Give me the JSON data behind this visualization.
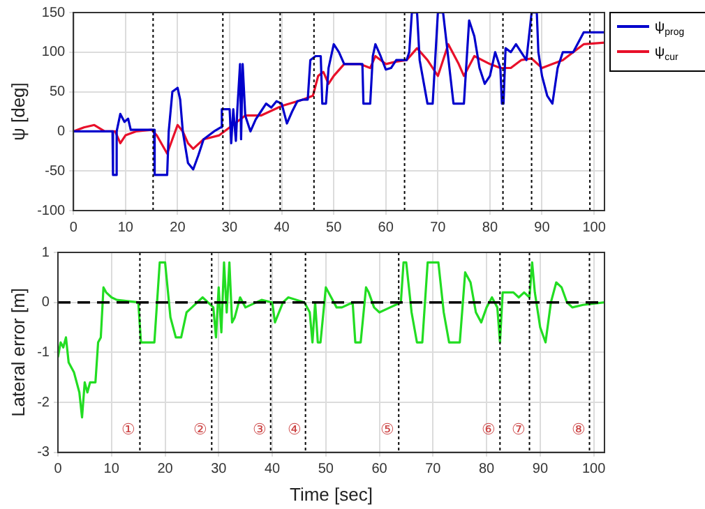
{
  "chart_data": [
    {
      "type": "line",
      "ylabel": "ψ [deg]",
      "xlim": [
        0,
        102
      ],
      "xticks": [
        0,
        10,
        20,
        30,
        40,
        50,
        60,
        70,
        80,
        90,
        100
      ],
      "ylim": [
        -100,
        150
      ],
      "yticks": [
        -100,
        -50,
        0,
        50,
        100,
        150
      ],
      "grid": true,
      "legend": "top right",
      "marker": "none",
      "line_style": "solid",
      "series": [
        {
          "name": "ψ$_{prog}$",
          "color": "#0000cc",
          "x": [
            0,
            7.5,
            7.6,
            8.2,
            8.3,
            9,
            9.8,
            10.5,
            11,
            15.5,
            15.6,
            18,
            18.3,
            19,
            20,
            20.5,
            21,
            22,
            23,
            24,
            25,
            27,
            28.3,
            28.5,
            30,
            30.3,
            30.7,
            31.2,
            31.5,
            32,
            32.2,
            32.5,
            33,
            34,
            35,
            36,
            37,
            38,
            39,
            40,
            41,
            42,
            43,
            44,
            45,
            45.5,
            46.5,
            47.5,
            47.8,
            48.5,
            49,
            50,
            51,
            52,
            54,
            55.5,
            55.7,
            57,
            57.5,
            58,
            59,
            60,
            61,
            62,
            64,
            64.5,
            65,
            66,
            66.5,
            68,
            69,
            70,
            71,
            73,
            75,
            76,
            77,
            78,
            79,
            80,
            81,
            82,
            82.3,
            82.6,
            83,
            84,
            85,
            86,
            87,
            88,
            89,
            89.3,
            90,
            91,
            92,
            93,
            94,
            96,
            98,
            102
          ],
          "values": [
            0,
            0,
            -55,
            -55,
            0,
            22,
            12,
            16,
            2,
            2,
            -55,
            -55,
            0,
            50,
            55,
            40,
            0,
            -40,
            -48,
            -30,
            -10,
            0,
            5,
            28,
            28,
            -15,
            28,
            -12,
            30,
            85,
            -10,
            85,
            20,
            0,
            15,
            25,
            35,
            30,
            38,
            35,
            10,
            25,
            38,
            40,
            40,
            90,
            95,
            95,
            35,
            35,
            80,
            110,
            100,
            85,
            85,
            85,
            35,
            35,
            95,
            110,
            95,
            78,
            80,
            90,
            90,
            100,
            150,
            150,
            90,
            35,
            35,
            150,
            150,
            35,
            35,
            140,
            120,
            80,
            60,
            70,
            100,
            80,
            35,
            35,
            105,
            100,
            110,
            100,
            90,
            150,
            150,
            100,
            70,
            45,
            35,
            80,
            100,
            100,
            125,
            125
          ]
        },
        {
          "name": "ψ$_{cur}$",
          "color": "#e8102a",
          "x": [
            0,
            2,
            4,
            6,
            8,
            9,
            10,
            12,
            15,
            16,
            18,
            19,
            20,
            21,
            22,
            23,
            25,
            28,
            30,
            33,
            36,
            40,
            44,
            46,
            47,
            48,
            49,
            50,
            52,
            55,
            57,
            58,
            60,
            62,
            64,
            66,
            68,
            70,
            72,
            74,
            75,
            77,
            80,
            82,
            84,
            86,
            88,
            90,
            92,
            94,
            96,
            98,
            102
          ],
          "values": [
            0,
            5,
            8,
            0,
            0,
            -15,
            -5,
            0,
            2,
            -5,
            -28,
            -10,
            8,
            0,
            -15,
            -22,
            -10,
            -5,
            5,
            20,
            20,
            32,
            40,
            45,
            70,
            75,
            60,
            70,
            85,
            85,
            80,
            95,
            85,
            88,
            90,
            105,
            90,
            70,
            110,
            85,
            70,
            95,
            85,
            80,
            80,
            90,
            92,
            80,
            85,
            90,
            100,
            110,
            112
          ]
        }
      ],
      "ref_lines": [
        {
          "axis": "x",
          "value": 15.3,
          "color": "#000000",
          "line_style": "dotted"
        },
        {
          "axis": "x",
          "value": 28.7,
          "color": "#000000",
          "line_style": "dotted"
        },
        {
          "axis": "x",
          "value": 39.7,
          "color": "#000000",
          "line_style": "dotted"
        },
        {
          "axis": "x",
          "value": 46.2,
          "color": "#000000",
          "line_style": "dotted"
        },
        {
          "axis": "x",
          "value": 63.6,
          "color": "#000000",
          "line_style": "dotted"
        },
        {
          "axis": "x",
          "value": 82.5,
          "color": "#000000",
          "line_style": "dotted"
        },
        {
          "axis": "x",
          "value": 88,
          "color": "#000000",
          "line_style": "dotted"
        },
        {
          "axis": "x",
          "value": 99.2,
          "color": "#000000",
          "line_style": "dotted"
        }
      ]
    },
    {
      "type": "line",
      "xlabel": "Time [sec]",
      "ylabel": "Lateral error [m]",
      "xlim": [
        0,
        102
      ],
      "xticks": [
        0,
        10,
        20,
        30,
        40,
        50,
        60,
        70,
        80,
        90,
        100
      ],
      "ylim": [
        -3,
        1
      ],
      "yticks": [
        -3,
        -2,
        -1,
        0,
        1
      ],
      "grid": true,
      "marker": "none",
      "line_style": "solid",
      "series": [
        {
          "color": "#22dd22",
          "x": [
            0,
            0.5,
            1,
            1.5,
            2,
            3,
            4,
            4.5,
            5,
            5.5,
            6,
            7,
            7.5,
            8,
            8.5,
            9,
            10,
            11,
            15,
            15.5,
            18,
            19,
            20,
            21,
            22,
            23,
            24,
            25,
            27,
            28,
            29,
            29.5,
            30,
            30.5,
            31,
            31.5,
            32,
            32.5,
            33,
            34,
            35,
            38,
            40,
            40.5,
            42,
            43,
            46,
            47,
            47.5,
            48,
            48.5,
            49,
            50,
            51,
            52,
            53,
            55,
            55.5,
            56.5,
            57.5,
            58,
            59,
            60,
            62,
            64,
            64.5,
            65,
            66,
            67,
            68,
            69,
            70,
            71,
            72,
            73,
            75,
            76,
            77,
            78,
            79,
            80,
            81,
            82,
            82.5,
            83,
            85,
            86,
            87,
            88,
            88.5,
            89,
            90,
            91,
            92,
            93,
            94,
            95,
            96,
            98,
            102
          ],
          "values": [
            -1.1,
            -0.8,
            -0.9,
            -0.7,
            -1.2,
            -1.4,
            -1.8,
            -2.3,
            -1.6,
            -1.8,
            -1.6,
            -1.6,
            -0.8,
            -0.7,
            0.3,
            0.2,
            0.1,
            0.05,
            0,
            -0.8,
            -0.8,
            0.8,
            0.8,
            -0.3,
            -0.7,
            -0.7,
            -0.2,
            -0.1,
            0.1,
            0,
            -0.1,
            -0.7,
            0.3,
            -0.6,
            0.8,
            -0.2,
            0.8,
            -0.4,
            -0.3,
            0.1,
            -0.1,
            0.05,
            0,
            -0.4,
            0,
            0.1,
            0,
            -0.2,
            -0.8,
            0,
            -0.8,
            -0.8,
            0.3,
            0.1,
            -0.1,
            -0.1,
            0,
            -0.8,
            -0.8,
            0.3,
            0.2,
            -0.1,
            -0.2,
            -0.1,
            0,
            0.8,
            0.8,
            -0.2,
            -0.8,
            -0.8,
            0.8,
            0.8,
            0.8,
            -0.2,
            -0.8,
            -0.8,
            0.6,
            0.4,
            -0.2,
            -0.4,
            -0.1,
            0.1,
            -0.1,
            -0.8,
            0.2,
            0.2,
            0.1,
            0.2,
            0.1,
            0.8,
            0.2,
            -0.5,
            -0.8,
            0,
            0.4,
            0.3,
            0,
            -0.1,
            -0.05,
            0
          ]
        }
      ],
      "ref_lines": [
        {
          "axis": "y",
          "value": 0,
          "color": "#000000",
          "line_style": "dashed"
        },
        {
          "axis": "x",
          "value": 15.3,
          "color": "#000000",
          "line_style": "dotted"
        },
        {
          "axis": "x",
          "value": 28.7,
          "color": "#000000",
          "line_style": "dotted"
        },
        {
          "axis": "x",
          "value": 39.7,
          "color": "#000000",
          "line_style": "dotted"
        },
        {
          "axis": "x",
          "value": 46.2,
          "color": "#000000",
          "line_style": "dotted"
        },
        {
          "axis": "x",
          "value": 63.6,
          "color": "#000000",
          "line_style": "dotted"
        },
        {
          "axis": "x",
          "value": 82.5,
          "color": "#000000",
          "line_style": "dotted"
        },
        {
          "axis": "x",
          "value": 88,
          "color": "#000000",
          "line_style": "dotted"
        },
        {
          "axis": "x",
          "value": 99.2,
          "color": "#000000",
          "line_style": "dotted"
        }
      ],
      "annotations": [
        "①",
        "②",
        "③",
        "④",
        "⑤",
        "⑥",
        "⑦",
        "⑧"
      ]
    }
  ]
}
